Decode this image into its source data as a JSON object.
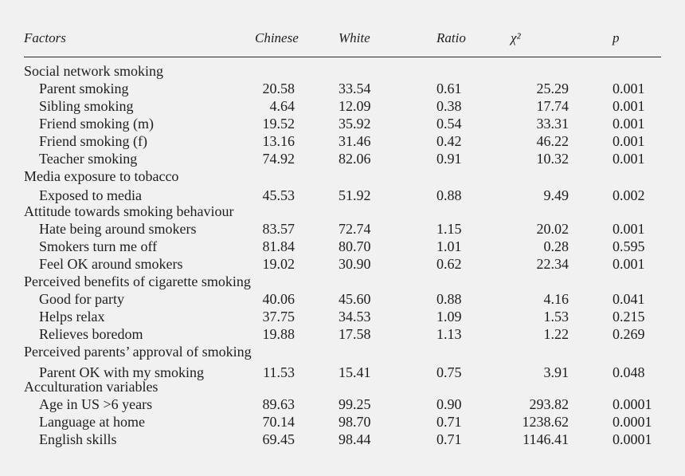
{
  "header": {
    "factors": "Factors",
    "chinese": "Chinese",
    "white": "White",
    "ratio": "Ratio",
    "chi2": "χ²",
    "p": "p"
  },
  "rows": [
    {
      "kind": "section",
      "label": "Social network smoking"
    },
    {
      "kind": "data",
      "label": "Parent smoking",
      "chinese": "20.58",
      "white": "33.54",
      "ratio": "0.61",
      "chi2": "25.29",
      "p": "0.001"
    },
    {
      "kind": "data",
      "label": "Sibling smoking",
      "chinese": "4.64",
      "white": "12.09",
      "ratio": "0.38",
      "chi2": "17.74",
      "p": "0.001"
    },
    {
      "kind": "data",
      "label": "Friend smoking (m)",
      "chinese": "19.52",
      "white": "35.92",
      "ratio": "0.54",
      "chi2": "33.31",
      "p": "0.001"
    },
    {
      "kind": "data",
      "label": "Friend smoking (f)",
      "chinese": "13.16",
      "white": "31.46",
      "ratio": "0.42",
      "chi2": "46.22",
      "p": "0.001"
    },
    {
      "kind": "data",
      "label": "Teacher smoking",
      "chinese": "74.92",
      "white": "82.06",
      "ratio": "0.91",
      "chi2": "10.32",
      "p": "0.001"
    },
    {
      "kind": "section",
      "label": "Media exposure to tobacco"
    },
    {
      "kind": "data",
      "label": "Exposed to media",
      "chinese": "45.53",
      "white": "51.92",
      "ratio": "0.88",
      "chi2": "9.49",
      "p": "0.002"
    },
    {
      "kind": "section",
      "label": "Attitude towards smoking behaviour"
    },
    {
      "kind": "data",
      "label": "Hate being around smokers",
      "chinese": "83.57",
      "white": "72.74",
      "ratio": "1.15",
      "chi2": "20.02",
      "p": "0.001"
    },
    {
      "kind": "data",
      "label": "Smokers turn me off",
      "chinese": "81.84",
      "white": "80.70",
      "ratio": "1.01",
      "chi2": "0.28",
      "p": "0.595"
    },
    {
      "kind": "data",
      "label": "Feel OK around smokers",
      "chinese": "19.02",
      "white": "30.90",
      "ratio": "0.62",
      "chi2": "22.34",
      "p": "0.001"
    },
    {
      "kind": "section",
      "label": "Perceived benefits of cigarette smoking"
    },
    {
      "kind": "data",
      "label": "Good for party",
      "chinese": "40.06",
      "white": "45.60",
      "ratio": "0.88",
      "chi2": "4.16",
      "p": "0.041"
    },
    {
      "kind": "data",
      "label": "Helps relax",
      "chinese": "37.75",
      "white": "34.53",
      "ratio": "1.09",
      "chi2": "1.53",
      "p": "0.215"
    },
    {
      "kind": "data",
      "label": "Relieves boredom",
      "chinese": "19.88",
      "white": "17.58",
      "ratio": "1.13",
      "chi2": "1.22",
      "p": "0.269"
    },
    {
      "kind": "section",
      "label": "Perceived parents’ approval of smoking"
    },
    {
      "kind": "data",
      "label": "Parent OK with my smoking",
      "chinese": "11.53",
      "white": "15.41",
      "ratio": "0.75",
      "chi2": "3.91",
      "p": "0.048"
    },
    {
      "kind": "section",
      "label": "Acculturation variables"
    },
    {
      "kind": "data",
      "label": "Age in US >6 years",
      "chinese": "89.63",
      "white": "99.25",
      "ratio": "0.90",
      "chi2": "293.82",
      "p": "0.0001"
    },
    {
      "kind": "data",
      "label": "Language at home",
      "chinese": "70.14",
      "white": "98.70",
      "ratio": "0.71",
      "chi2": "1238.62",
      "p": "0.0001"
    },
    {
      "kind": "data",
      "label": "English skills",
      "chinese": "69.45",
      "white": "98.44",
      "ratio": "0.71",
      "chi2": "1146.41",
      "p": "0.0001"
    }
  ]
}
